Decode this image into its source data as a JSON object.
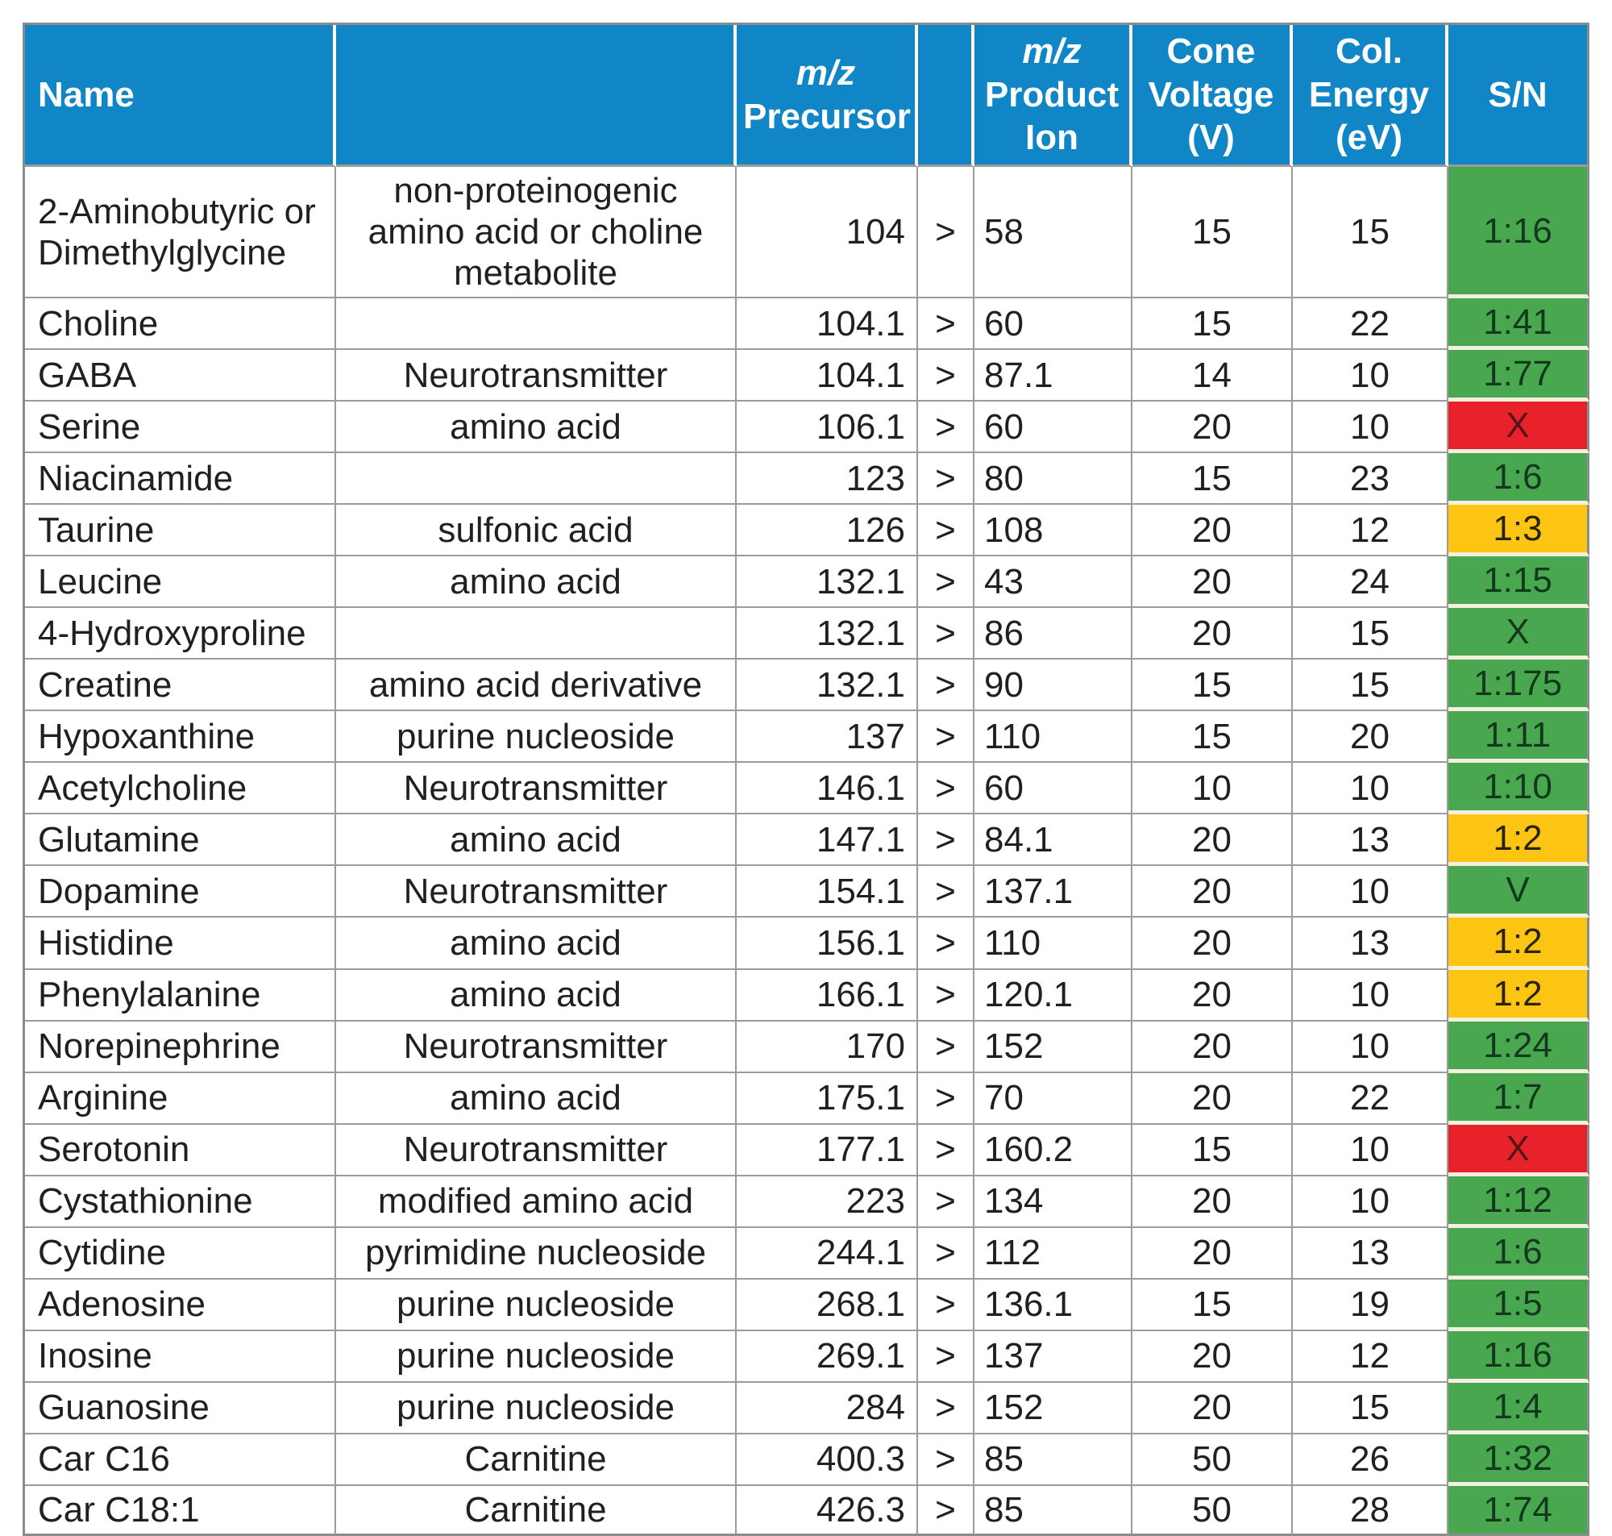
{
  "table": {
    "header": {
      "name": "Name",
      "category": "",
      "mz": "m/z",
      "precursor": "Precursor",
      "arrow": "",
      "product_1": "Product",
      "product_2": "Ion",
      "cone_1": "Cone",
      "cone_2": "Voltage",
      "cone_3": "(V)",
      "energy_1": "Col.",
      "energy_2": "Energy",
      "energy_3": "(eV)",
      "sn": "S/N"
    },
    "separator": ">",
    "rows": [
      {
        "name": "2-Aminobutyric or Dimethylglycine",
        "category": "non-proteinogenic amino acid or choline metabolite",
        "precursor": "104",
        "product": "58",
        "cone": "15",
        "energy": "15",
        "sn": "1:16",
        "sn_color": "green"
      },
      {
        "name": "Choline",
        "category": "",
        "precursor": "104.1",
        "product": "60",
        "cone": "15",
        "energy": "22",
        "sn": "1:41",
        "sn_color": "green"
      },
      {
        "name": "GABA",
        "category": "Neurotransmitter",
        "precursor": "104.1",
        "product": "87.1",
        "cone": "14",
        "energy": "10",
        "sn": "1:77",
        "sn_color": "green"
      },
      {
        "name": "Serine",
        "category": "amino acid",
        "precursor": "106.1",
        "product": "60",
        "cone": "20",
        "energy": "10",
        "sn": "X",
        "sn_color": "red"
      },
      {
        "name": "Niacinamide",
        "category": "",
        "precursor": "123",
        "product": "80",
        "cone": "15",
        "energy": "23",
        "sn": "1:6",
        "sn_color": "green"
      },
      {
        "name": "Taurine",
        "category": "sulfonic acid",
        "precursor": "126",
        "product": "108",
        "cone": "20",
        "energy": "12",
        "sn": "1:3",
        "sn_color": "yellow"
      },
      {
        "name": "Leucine",
        "category": "amino acid",
        "precursor": "132.1",
        "product": "43",
        "cone": "20",
        "energy": "24",
        "sn": "1:15",
        "sn_color": "green"
      },
      {
        "name": "4-Hydroxyproline",
        "category": "",
        "precursor": "132.1",
        "product": "86",
        "cone": "20",
        "energy": "15",
        "sn": "X",
        "sn_color": "green"
      },
      {
        "name": "Creatine",
        "category": "amino acid derivative",
        "precursor": "132.1",
        "product": "90",
        "cone": "15",
        "energy": "15",
        "sn": "1:175",
        "sn_color": "green"
      },
      {
        "name": "Hypoxanthine",
        "category": "purine nucleoside",
        "precursor": "137",
        "product": "110",
        "cone": "15",
        "energy": "20",
        "sn": "1:11",
        "sn_color": "green"
      },
      {
        "name": "Acetylcholine",
        "category": "Neurotransmitter",
        "precursor": "146.1",
        "product": "60",
        "cone": "10",
        "energy": "10",
        "sn": "1:10",
        "sn_color": "green"
      },
      {
        "name": "Glutamine",
        "category": "amino acid",
        "precursor": "147.1",
        "product": "84.1",
        "cone": "20",
        "energy": "13",
        "sn": "1:2",
        "sn_color": "yellow"
      },
      {
        "name": "Dopamine",
        "category": "Neurotransmitter",
        "precursor": "154.1",
        "product": "137.1",
        "cone": "20",
        "energy": "10",
        "sn": "V",
        "sn_color": "green"
      },
      {
        "name": "Histidine",
        "category": "amino acid",
        "precursor": "156.1",
        "product": "110",
        "cone": "20",
        "energy": "13",
        "sn": "1:2",
        "sn_color": "yellow"
      },
      {
        "name": "Phenylalanine",
        "category": "amino acid",
        "precursor": "166.1",
        "product": "120.1",
        "cone": "20",
        "energy": "10",
        "sn": "1:2",
        "sn_color": "yellow"
      },
      {
        "name": "Norepinephrine",
        "category": "Neurotransmitter",
        "precursor": "170",
        "product": "152",
        "cone": "20",
        "energy": "10",
        "sn": "1:24",
        "sn_color": "green"
      },
      {
        "name": "Arginine",
        "category": "amino acid",
        "precursor": "175.1",
        "product": "70",
        "cone": "20",
        "energy": "22",
        "sn": "1:7",
        "sn_color": "green"
      },
      {
        "name": "Serotonin",
        "category": "Neurotransmitter",
        "precursor": "177.1",
        "product": "160.2",
        "cone": "15",
        "energy": "10",
        "sn": "X",
        "sn_color": "red"
      },
      {
        "name": "Cystathionine",
        "category": "modified amino acid",
        "precursor": "223",
        "product": "134",
        "cone": "20",
        "energy": "10",
        "sn": "1:12",
        "sn_color": "green"
      },
      {
        "name": "Cytidine",
        "category": "pyrimidine nucleoside",
        "precursor": "244.1",
        "product": "112",
        "cone": "20",
        "energy": "13",
        "sn": "1:6",
        "sn_color": "green"
      },
      {
        "name": "Adenosine",
        "category": "purine nucleoside",
        "precursor": "268.1",
        "product": "136.1",
        "cone": "15",
        "energy": "19",
        "sn": "1:5",
        "sn_color": "green"
      },
      {
        "name": "Inosine",
        "category": "purine nucleoside",
        "precursor": "269.1",
        "product": "137",
        "cone": "20",
        "energy": "12",
        "sn": "1:16",
        "sn_color": "green"
      },
      {
        "name": "Guanosine",
        "category": "purine nucleoside",
        "precursor": "284",
        "product": "152",
        "cone": "20",
        "energy": "15",
        "sn": "1:4",
        "sn_color": "green"
      },
      {
        "name": "Car C16",
        "category": "Carnitine",
        "precursor": "400.3",
        "product": "85",
        "cone": "50",
        "energy": "26",
        "sn": "1:32",
        "sn_color": "green"
      },
      {
        "name": "Car C18:1",
        "category": "Carnitine",
        "precursor": "426.3",
        "product": "85",
        "cone": "50",
        "energy": "28",
        "sn": "1:74",
        "sn_color": "green"
      }
    ]
  },
  "colors": {
    "header_bg": "#1186c7",
    "header_text": "#ffffff",
    "body_text": "#231f20",
    "grid_line": "#9b9b9b",
    "outer_line": "#8a8c8e",
    "sn_separator": "#f3f0dd",
    "green": "#49a84f",
    "yellow": "#fdc513",
    "red": "#e8222b",
    "green_text": "#12391d",
    "yellow_text": "#2b2202",
    "red_text": "#54141a"
  }
}
